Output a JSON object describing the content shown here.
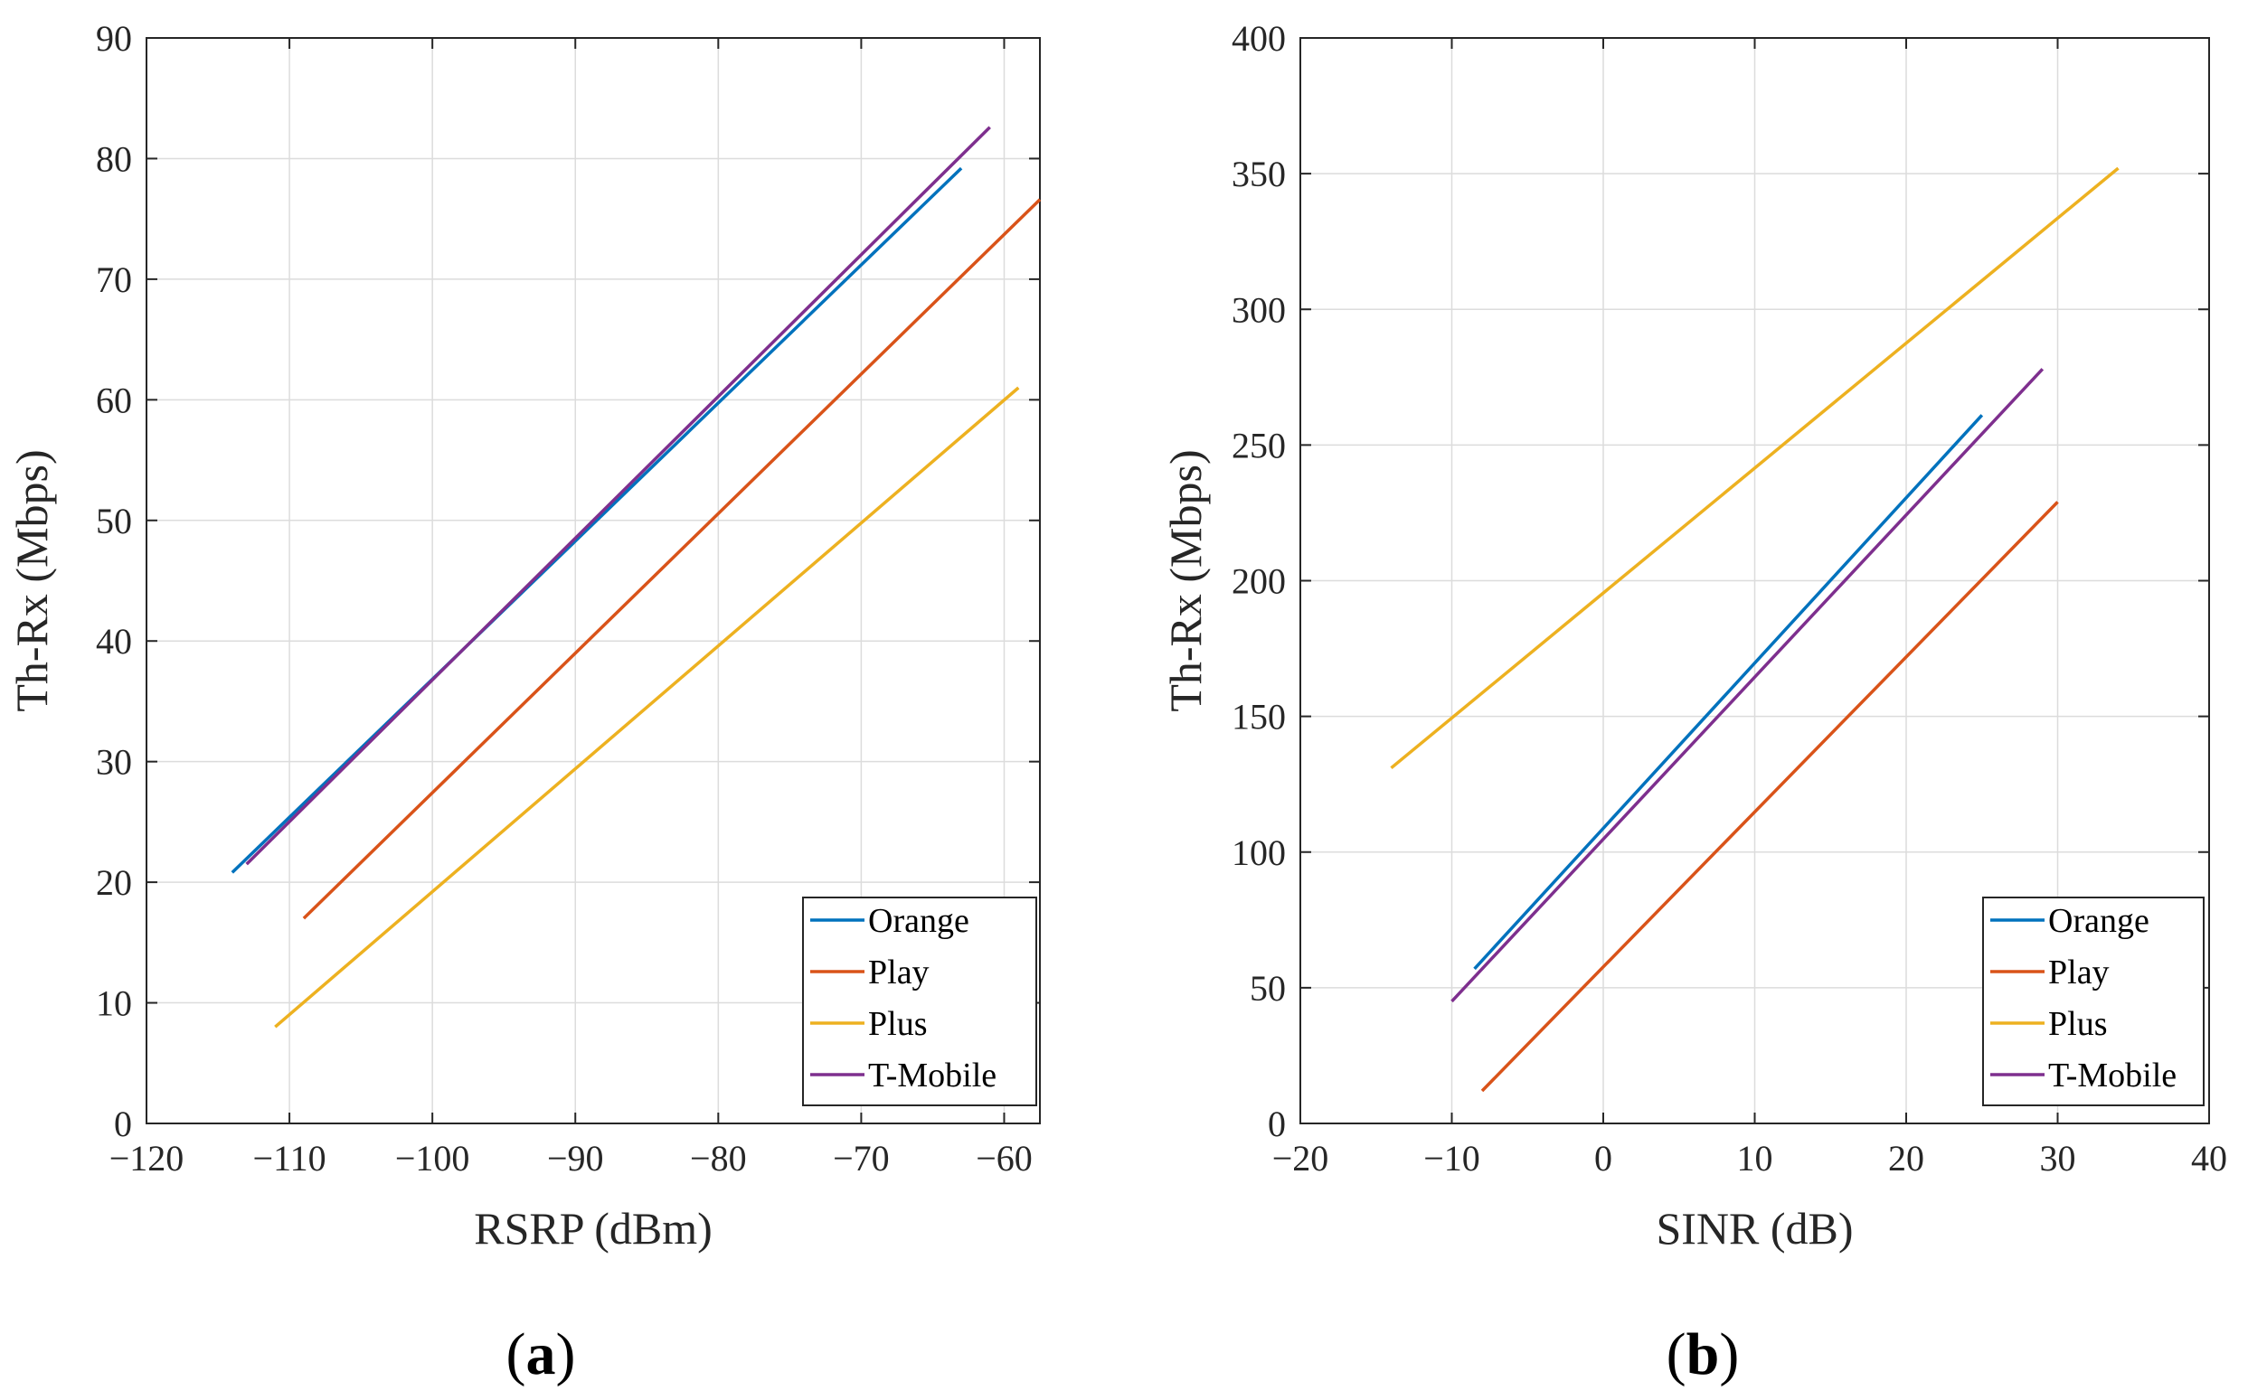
{
  "colors": {
    "Orange": "#0072BD",
    "Play": "#D95319",
    "Plus": "#EDB120",
    "T-Mobile": "#7E2F8E"
  },
  "chart_data": [
    {
      "type": "line",
      "panel": "(a)",
      "panel_letter": "a",
      "xlabel": "RSRP  (dBm)",
      "ylabel": "Th-Rx  (Mbps)",
      "xlim": [
        -120,
        -57.5
      ],
      "ylim": [
        0,
        90
      ],
      "xticks": [
        -120,
        -110,
        -100,
        -90,
        -80,
        -70,
        -60
      ],
      "xtick_labels": [
        "−120",
        "−110",
        "−100",
        "−90",
        "−80",
        "−70",
        "−60"
      ],
      "yticks": [
        0,
        10,
        20,
        30,
        40,
        50,
        60,
        70,
        80,
        90
      ],
      "ytick_labels": [
        "0",
        "10",
        "20",
        "30",
        "40",
        "50",
        "60",
        "70",
        "80",
        "90"
      ],
      "grid": true,
      "legend_position": "bottom-right",
      "series": [
        {
          "name": "Orange",
          "x": [
            -114,
            -63
          ],
          "y": [
            20.8,
            79.2
          ]
        },
        {
          "name": "Play",
          "x": [
            -109,
            -57.5
          ],
          "y": [
            17.0,
            76.6
          ]
        },
        {
          "name": "Plus",
          "x": [
            -111,
            -59
          ],
          "y": [
            8.0,
            61.0
          ]
        },
        {
          "name": "T-Mobile",
          "x": [
            -113,
            -61
          ],
          "y": [
            21.5,
            82.6
          ]
        }
      ]
    },
    {
      "type": "line",
      "panel": "(b)",
      "panel_letter": "b",
      "xlabel": "SINR  (dB)",
      "ylabel": "Th-Rx  (Mbps)",
      "xlim": [
        -20,
        40
      ],
      "ylim": [
        0,
        400
      ],
      "xticks": [
        -20,
        -10,
        0,
        10,
        20,
        30,
        40
      ],
      "xtick_labels": [
        "−20",
        "−10",
        "0",
        "10",
        "20",
        "30",
        "40"
      ],
      "yticks": [
        0,
        50,
        100,
        150,
        200,
        250,
        300,
        350,
        400
      ],
      "ytick_labels": [
        "0",
        "50",
        "100",
        "150",
        "200",
        "250",
        "300",
        "350",
        "400"
      ],
      "grid": true,
      "legend_position": "bottom-right",
      "series": [
        {
          "name": "Orange",
          "x": [
            -8.5,
            25
          ],
          "y": [
            57,
            261
          ]
        },
        {
          "name": "Play",
          "x": [
            -8,
            30
          ],
          "y": [
            12,
            229
          ]
        },
        {
          "name": "Plus",
          "x": [
            -14,
            34
          ],
          "y": [
            131,
            352
          ]
        },
        {
          "name": "T-Mobile",
          "x": [
            -10,
            29
          ],
          "y": [
            45,
            278
          ]
        }
      ]
    }
  ]
}
